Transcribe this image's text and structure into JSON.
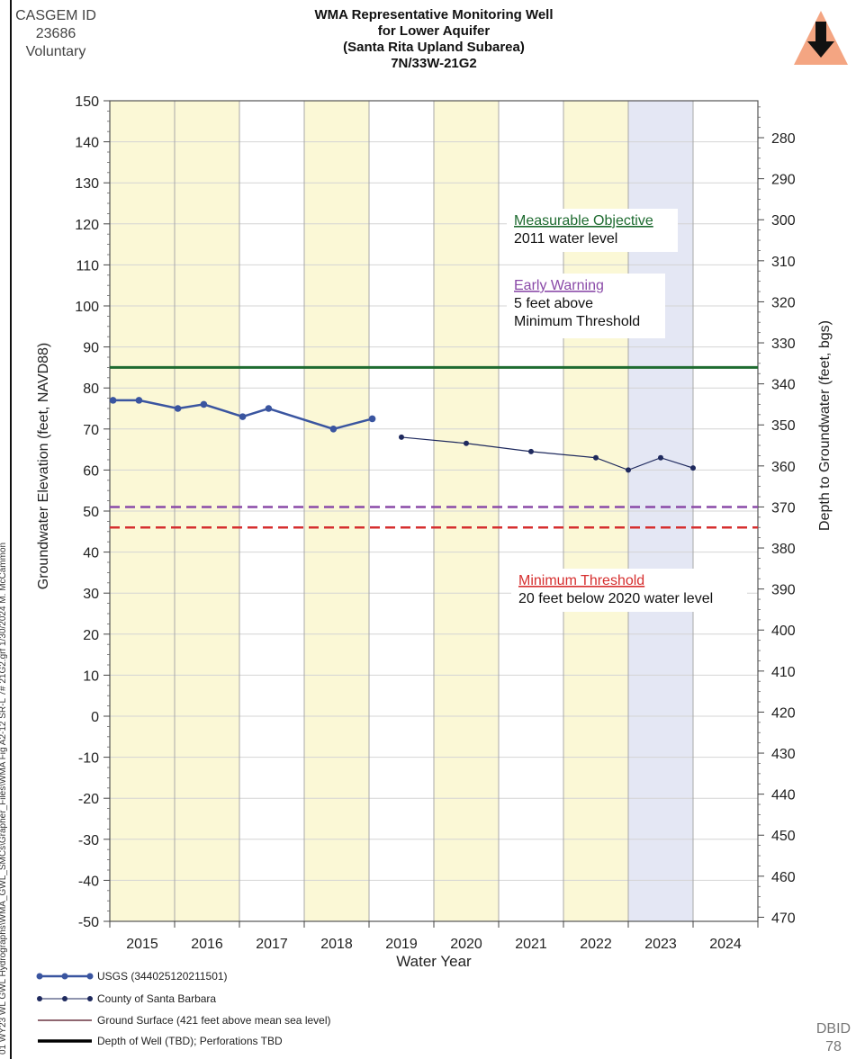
{
  "header": {
    "casgem_lines": [
      "CASGEM ID",
      "23686",
      "Voluntary"
    ],
    "title_lines": [
      "WMA Representative Monitoring Well",
      "for Lower Aquifer",
      "(Santa Rita Upland Subarea)",
      "7N/33W-21G2"
    ],
    "trend_icon": "down-arrow-icon",
    "trend_icon_color": "#f4a582"
  },
  "side_path": "01 WY23 WL GWL Hydrographs\\WMA_GWL_SMCs\\Grapher_Files\\WMA Fig A2-12 SR-L 7# 21G2.grf 1/30/2024 M. McCammon",
  "dbid": [
    "DBID",
    "78"
  ],
  "chart_data": {
    "type": "line",
    "xlabel": "Water Year",
    "ylabel": "Groundwater Elevation (feet, NAVD88)",
    "y2label": "Depth to Groundwater (feet, bgs)",
    "ylim": [
      -50,
      150
    ],
    "y2_ticks": [
      280,
      290,
      300,
      310,
      320,
      330,
      340,
      350,
      360,
      370,
      380,
      390,
      400,
      410,
      420,
      430,
      440,
      450,
      460,
      470
    ],
    "y2_relation": "depth = 421 - elevation",
    "xlim": [
      2014.5,
      2024.5
    ],
    "x_ticks": [
      2015,
      2016,
      2017,
      2018,
      2019,
      2020,
      2021,
      2022,
      2023,
      2024
    ],
    "y_ticks": [
      -50,
      -40,
      -30,
      -20,
      -10,
      0,
      10,
      20,
      30,
      40,
      50,
      60,
      70,
      80,
      90,
      100,
      110,
      120,
      130,
      140,
      150
    ],
    "shaded_years": [
      {
        "from": 2014.5,
        "to": 2016.5,
        "kind": "dry",
        "color": "#fbf8d6"
      },
      {
        "from": 2017.5,
        "to": 2018.5,
        "kind": "dry",
        "color": "#fbf8d6"
      },
      {
        "from": 2019.5,
        "to": 2020.5,
        "kind": "dry",
        "color": "#fbf8d6"
      },
      {
        "from": 2021.5,
        "to": 2022.5,
        "kind": "dry",
        "color": "#fbf8d6"
      },
      {
        "from": 2022.5,
        "to": 2023.5,
        "kind": "wet",
        "color": "#e4e7f4"
      }
    ],
    "thresholds": [
      {
        "name": "Measurable Objective",
        "value": 85,
        "color": "#1e6b30",
        "style": "solid",
        "label_title": "Measurable Objective",
        "label_desc": [
          "2011 water level"
        ]
      },
      {
        "name": "Early Warning",
        "value": 51,
        "color": "#8a4aa8",
        "style": "dashed",
        "label_title": "Early Warning",
        "label_desc": [
          "5 feet above",
          "Minimum Threshold"
        ]
      },
      {
        "name": "Minimum Threshold",
        "value": 46,
        "color": "#d62f2f",
        "style": "dashed",
        "label_title": "Minimum Threshold",
        "label_desc": [
          "20 feet below 2020 water level"
        ]
      }
    ],
    "series": [
      {
        "name": "USGS (344025120211501)",
        "color": "#3a55a0",
        "marker": "circle",
        "points": [
          [
            2014.55,
            77
          ],
          [
            2014.95,
            77
          ],
          [
            2015.55,
            75
          ],
          [
            2015.95,
            76
          ],
          [
            2016.55,
            73
          ],
          [
            2016.95,
            75
          ],
          [
            2017.95,
            70
          ],
          [
            2018.55,
            72.5
          ]
        ]
      },
      {
        "name": "County of Santa Barbara",
        "color": "#1f2a5e",
        "marker": "dot",
        "points": [
          [
            2019.0,
            68
          ],
          [
            2020.0,
            66.5
          ],
          [
            2021.0,
            64.5
          ],
          [
            2022.0,
            63
          ],
          [
            2022.5,
            60
          ],
          [
            2023.0,
            63
          ],
          [
            2023.5,
            60.5
          ]
        ]
      }
    ]
  },
  "legend": [
    {
      "label": "USGS (344025120211501)",
      "kind": "series-usgs",
      "color": "#3a55a0"
    },
    {
      "label": "County of Santa Barbara",
      "kind": "series-county",
      "color": "#1f2a5e"
    },
    {
      "label": "Ground Surface (421 feet above mean sea level)",
      "kind": "line-thin",
      "color": "#6a3340"
    },
    {
      "label": "Depth of Well (TBD); Perforations TBD",
      "kind": "line-thick",
      "color": "#000000"
    }
  ]
}
